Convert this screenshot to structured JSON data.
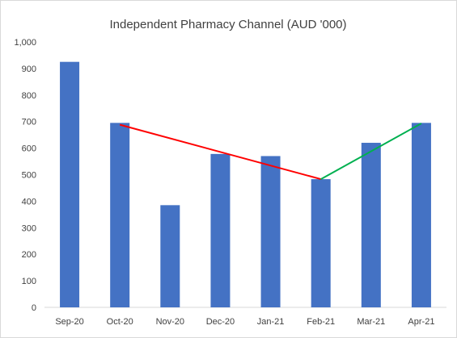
{
  "chart_data": {
    "type": "bar",
    "title": "Independent Pharmacy Channel (AUD '000)",
    "categories": [
      "Sep-20",
      "Oct-20",
      "Nov-20",
      "Dec-20",
      "Jan-21",
      "Feb-21",
      "Mar-21",
      "Apr-21"
    ],
    "series": [
      {
        "values": [
          925,
          695,
          385,
          578,
          570,
          483,
          620,
          695
        ],
        "color": "#4472c4"
      }
    ],
    "yticks": [
      "0",
      "100",
      "200",
      "300",
      "400",
      "500",
      "600",
      "700",
      "800",
      "900",
      "1,000"
    ],
    "ylim": [
      0,
      1000
    ],
    "grid": false,
    "legend": "none",
    "annotations": [
      {
        "type": "trend-line",
        "from": "Oct-20",
        "to": "Feb-21",
        "y_from": 688,
        "y_to": 483,
        "color": "#ff0000"
      },
      {
        "type": "trend-line",
        "from": "Feb-21",
        "to": "Apr-21",
        "y_from": 483,
        "y_to": 693,
        "color": "#00b050"
      }
    ]
  }
}
